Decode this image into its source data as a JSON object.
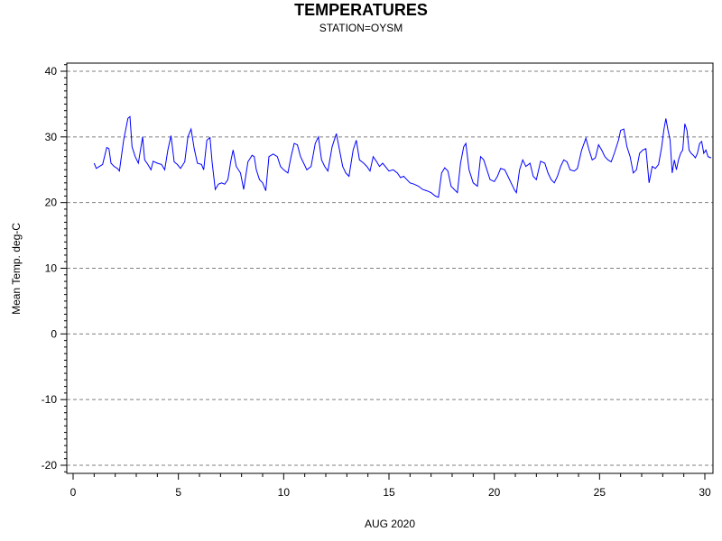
{
  "chart_data": {
    "type": "line",
    "title": "TEMPERATURES",
    "subtitle": "STATION=OYSM",
    "xlabel": "AUG 2020",
    "ylabel": "Mean Temp. deg-C",
    "xlim": [
      0,
      30
    ],
    "ylim": [
      -21,
      41
    ],
    "xticks": [
      0,
      5,
      10,
      15,
      20,
      25,
      30
    ],
    "yticks": [
      -20,
      -10,
      0,
      10,
      20,
      30,
      40
    ],
    "grid": "horizontal-dashed",
    "line_color": "#0000ff",
    "series": [
      {
        "points": [
          [
            1.0,
            26.0
          ],
          [
            1.1,
            25.2
          ],
          [
            1.25,
            25.5
          ],
          [
            1.4,
            25.8
          ],
          [
            1.6,
            28.4
          ],
          [
            1.7,
            28.2
          ],
          [
            1.8,
            26.0
          ],
          [
            1.95,
            25.5
          ],
          [
            2.1,
            25.2
          ],
          [
            2.2,
            24.8
          ],
          [
            2.4,
            29.5
          ],
          [
            2.6,
            32.8
          ],
          [
            2.7,
            33.1
          ],
          [
            2.8,
            28.5
          ],
          [
            2.95,
            27.0
          ],
          [
            3.1,
            26.0
          ],
          [
            3.3,
            30.0
          ],
          [
            3.4,
            26.5
          ],
          [
            3.55,
            25.8
          ],
          [
            3.7,
            25.0
          ],
          [
            3.8,
            26.3
          ],
          [
            4.0,
            26.0
          ],
          [
            4.2,
            25.8
          ],
          [
            4.35,
            25.0
          ],
          [
            4.5,
            28.0
          ],
          [
            4.65,
            30.2
          ],
          [
            4.8,
            26.2
          ],
          [
            4.95,
            25.8
          ],
          [
            5.1,
            25.2
          ],
          [
            5.3,
            26.2
          ],
          [
            5.45,
            30.0
          ],
          [
            5.6,
            31.2
          ],
          [
            5.75,
            28.2
          ],
          [
            5.9,
            26.0
          ],
          [
            6.1,
            25.8
          ],
          [
            6.2,
            25.0
          ],
          [
            6.35,
            29.5
          ],
          [
            6.5,
            29.9
          ],
          [
            6.6,
            26.2
          ],
          [
            6.75,
            22.0
          ],
          [
            6.9,
            22.8
          ],
          [
            7.05,
            23.0
          ],
          [
            7.2,
            22.8
          ],
          [
            7.35,
            23.5
          ],
          [
            7.5,
            26.5
          ],
          [
            7.6,
            28.0
          ],
          [
            7.75,
            25.5
          ],
          [
            7.95,
            24.5
          ],
          [
            8.1,
            22.0
          ],
          [
            8.3,
            26.2
          ],
          [
            8.5,
            27.2
          ],
          [
            8.6,
            27.0
          ],
          [
            8.7,
            25.0
          ],
          [
            8.85,
            23.5
          ],
          [
            9.0,
            23.0
          ],
          [
            9.15,
            21.8
          ],
          [
            9.3,
            27.0
          ],
          [
            9.5,
            27.4
          ],
          [
            9.7,
            27.0
          ],
          [
            9.85,
            25.5
          ],
          [
            10.0,
            25.0
          ],
          [
            10.2,
            24.5
          ],
          [
            10.35,
            27.0
          ],
          [
            10.5,
            29.0
          ],
          [
            10.65,
            28.8
          ],
          [
            10.8,
            27.0
          ],
          [
            10.95,
            26.0
          ],
          [
            11.1,
            25.0
          ],
          [
            11.3,
            25.5
          ],
          [
            11.5,
            29.0
          ],
          [
            11.65,
            30.0
          ],
          [
            11.8,
            26.5
          ],
          [
            11.95,
            25.5
          ],
          [
            12.1,
            24.8
          ],
          [
            12.3,
            28.5
          ],
          [
            12.5,
            30.5
          ],
          [
            12.65,
            28.0
          ],
          [
            12.8,
            25.5
          ],
          [
            12.95,
            24.5
          ],
          [
            13.1,
            24.0
          ],
          [
            13.3,
            28.0
          ],
          [
            13.45,
            29.5
          ],
          [
            13.6,
            26.5
          ],
          [
            13.8,
            26.0
          ],
          [
            13.95,
            25.5
          ],
          [
            14.1,
            24.8
          ],
          [
            14.25,
            27.0
          ],
          [
            14.4,
            26.3
          ],
          [
            14.55,
            25.5
          ],
          [
            14.7,
            26.0
          ],
          [
            14.9,
            25.2
          ],
          [
            15.0,
            24.8
          ],
          [
            15.2,
            25.0
          ],
          [
            15.4,
            24.5
          ],
          [
            15.55,
            23.8
          ],
          [
            15.7,
            24.0
          ],
          [
            15.85,
            23.5
          ],
          [
            16.0,
            23.0
          ],
          [
            16.2,
            22.8
          ],
          [
            16.4,
            22.5
          ],
          [
            16.6,
            22.0
          ],
          [
            16.8,
            21.8
          ],
          [
            17.0,
            21.5
          ],
          [
            17.2,
            21.0
          ],
          [
            17.35,
            20.8
          ],
          [
            17.5,
            24.5
          ],
          [
            17.65,
            25.3
          ],
          [
            17.8,
            24.8
          ],
          [
            17.95,
            22.5
          ],
          [
            18.1,
            22.0
          ],
          [
            18.25,
            21.5
          ],
          [
            18.4,
            26.0
          ],
          [
            18.55,
            28.5
          ],
          [
            18.65,
            29.0
          ],
          [
            18.8,
            25.0
          ],
          [
            19.0,
            23.0
          ],
          [
            19.2,
            22.5
          ],
          [
            19.35,
            27.0
          ],
          [
            19.5,
            26.5
          ],
          [
            19.65,
            25.0
          ],
          [
            19.8,
            23.5
          ],
          [
            20.0,
            23.2
          ],
          [
            20.15,
            24.0
          ],
          [
            20.3,
            25.2
          ],
          [
            20.5,
            25.0
          ],
          [
            20.65,
            24.0
          ],
          [
            20.8,
            23.0
          ],
          [
            20.95,
            22.0
          ],
          [
            21.05,
            21.5
          ],
          [
            21.2,
            25.0
          ],
          [
            21.35,
            26.5
          ],
          [
            21.5,
            25.5
          ],
          [
            21.7,
            26.0
          ],
          [
            21.85,
            24.0
          ],
          [
            22.0,
            23.5
          ],
          [
            22.2,
            26.3
          ],
          [
            22.4,
            26.0
          ],
          [
            22.55,
            24.5
          ],
          [
            22.7,
            23.5
          ],
          [
            22.85,
            23.0
          ],
          [
            23.0,
            24.0
          ],
          [
            23.15,
            25.5
          ],
          [
            23.3,
            26.5
          ],
          [
            23.45,
            26.2
          ],
          [
            23.6,
            25.0
          ],
          [
            23.8,
            24.8
          ],
          [
            23.95,
            25.2
          ],
          [
            24.15,
            28.0
          ],
          [
            24.35,
            29.8
          ],
          [
            24.5,
            28.0
          ],
          [
            24.65,
            26.5
          ],
          [
            24.8,
            26.8
          ],
          [
            24.95,
            28.8
          ],
          [
            25.1,
            28.0
          ],
          [
            25.25,
            27.0
          ],
          [
            25.4,
            26.5
          ],
          [
            25.55,
            26.2
          ],
          [
            25.7,
            27.5
          ],
          [
            25.9,
            29.5
          ],
          [
            26.0,
            31.0
          ],
          [
            26.15,
            31.2
          ],
          [
            26.3,
            28.5
          ],
          [
            26.45,
            27.0
          ],
          [
            26.6,
            24.5
          ],
          [
            26.75,
            25.0
          ],
          [
            26.9,
            27.5
          ],
          [
            27.05,
            28.0
          ],
          [
            27.2,
            28.2
          ],
          [
            27.35,
            23.0
          ],
          [
            27.5,
            25.5
          ],
          [
            27.65,
            25.2
          ],
          [
            27.8,
            25.8
          ],
          [
            27.95,
            28.5
          ],
          [
            28.05,
            31.0
          ],
          [
            28.15,
            32.8
          ],
          [
            28.25,
            31.0
          ],
          [
            28.35,
            29.5
          ],
          [
            28.45,
            24.5
          ],
          [
            28.55,
            26.5
          ],
          [
            28.65,
            25.0
          ],
          [
            28.75,
            26.5
          ],
          [
            28.85,
            27.5
          ],
          [
            28.95,
            28.0
          ],
          [
            29.05,
            32.0
          ],
          [
            29.15,
            31.0
          ],
          [
            29.25,
            28.0
          ],
          [
            29.35,
            27.5
          ],
          [
            29.45,
            27.2
          ],
          [
            29.55,
            26.8
          ],
          [
            29.65,
            27.5
          ],
          [
            29.75,
            29.0
          ],
          [
            29.85,
            29.3
          ],
          [
            29.95,
            27.5
          ],
          [
            30.05,
            28.0
          ],
          [
            30.15,
            27.0
          ],
          [
            30.3,
            26.8
          ]
        ]
      }
    ]
  }
}
